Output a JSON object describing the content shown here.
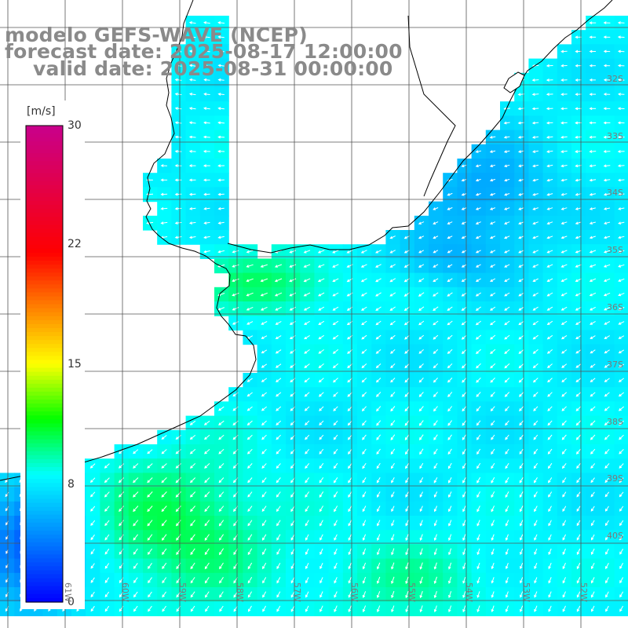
{
  "title": {
    "line1": "modelo GEFS-WAVE (NCEP)",
    "line2": "forecast date: 2025-08-17 12:00:00",
    "line3": "valid date: 2025-08-31 00:00:00"
  },
  "colorbar": {
    "unit": "[m/s]",
    "ticks": [
      {
        "label": "30",
        "value": 30
      },
      {
        "label": "22",
        "value": 22
      },
      {
        "label": "15",
        "value": 15
      },
      {
        "label": "8",
        "value": 8
      },
      {
        "label": "0",
        "value": 0
      }
    ],
    "colors": [
      "#0000ff",
      "#0090ff",
      "#00ffff",
      "#00ff00",
      "#ffff00",
      "#ff8000",
      "#ff0000",
      "#c00090"
    ]
  },
  "lat_labels": [
    "32S",
    "33S",
    "34S",
    "35S",
    "36S",
    "37S",
    "38S",
    "39S",
    "40S"
  ],
  "lon_labels": [
    "61W",
    "60W",
    "59W",
    "58W",
    "57W",
    "56W",
    "55W",
    "54W",
    "53W",
    "52W",
    "51W"
  ],
  "colors": {
    "land": "#ffffff",
    "coast": "#000000",
    "grid": "#555555",
    "arrow": "#ffffff",
    "title_text": "#8a8a8a"
  }
}
